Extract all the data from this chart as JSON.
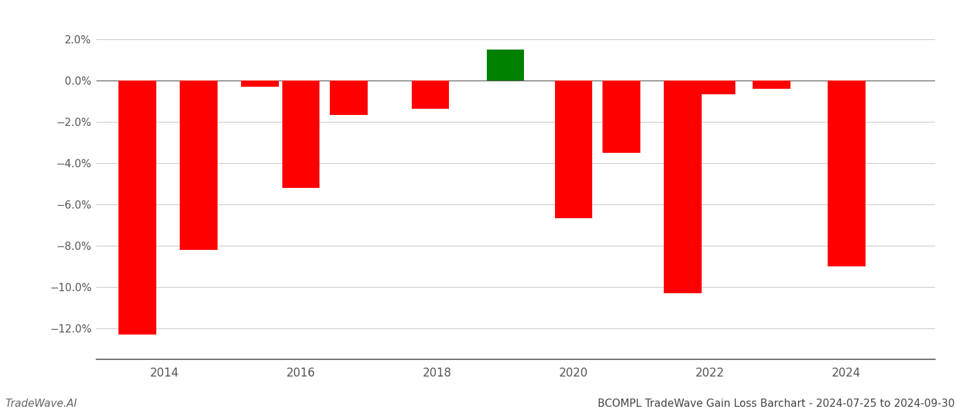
{
  "x_positions": [
    2013.6,
    2014.5,
    2015.4,
    2016.0,
    2016.7,
    2017.9,
    2019.0,
    2020.0,
    2020.7,
    2021.6,
    2022.1,
    2022.9,
    2024.0
  ],
  "values": [
    -0.123,
    -0.082,
    -0.003,
    -0.052,
    -0.0165,
    -0.0135,
    0.015,
    -0.0665,
    -0.035,
    -0.103,
    -0.0065,
    -0.004,
    -0.09
  ],
  "colors": [
    "#ff0000",
    "#ff0000",
    "#ff0000",
    "#ff0000",
    "#ff0000",
    "#ff0000",
    "#008000",
    "#ff0000",
    "#ff0000",
    "#ff0000",
    "#ff0000",
    "#ff0000",
    "#ff0000"
  ],
  "bar_width": 0.55,
  "title": "BCOMPL TradeWave Gain Loss Barchart - 2024-07-25 to 2024-09-30",
  "watermark": "TradeWave.AI",
  "ylim": [
    -0.135,
    0.025
  ],
  "yticks": [
    -0.12,
    -0.1,
    -0.08,
    -0.06,
    -0.04,
    -0.02,
    0.0,
    0.02
  ],
  "xlim": [
    2013.0,
    2025.3
  ],
  "xticks": [
    2014,
    2016,
    2018,
    2020,
    2022,
    2024
  ],
  "background_color": "#ffffff",
  "grid_color": "#cccccc",
  "spine_color": "#555555",
  "tick_color": "#555555",
  "title_fontsize": 11,
  "watermark_fontsize": 11
}
